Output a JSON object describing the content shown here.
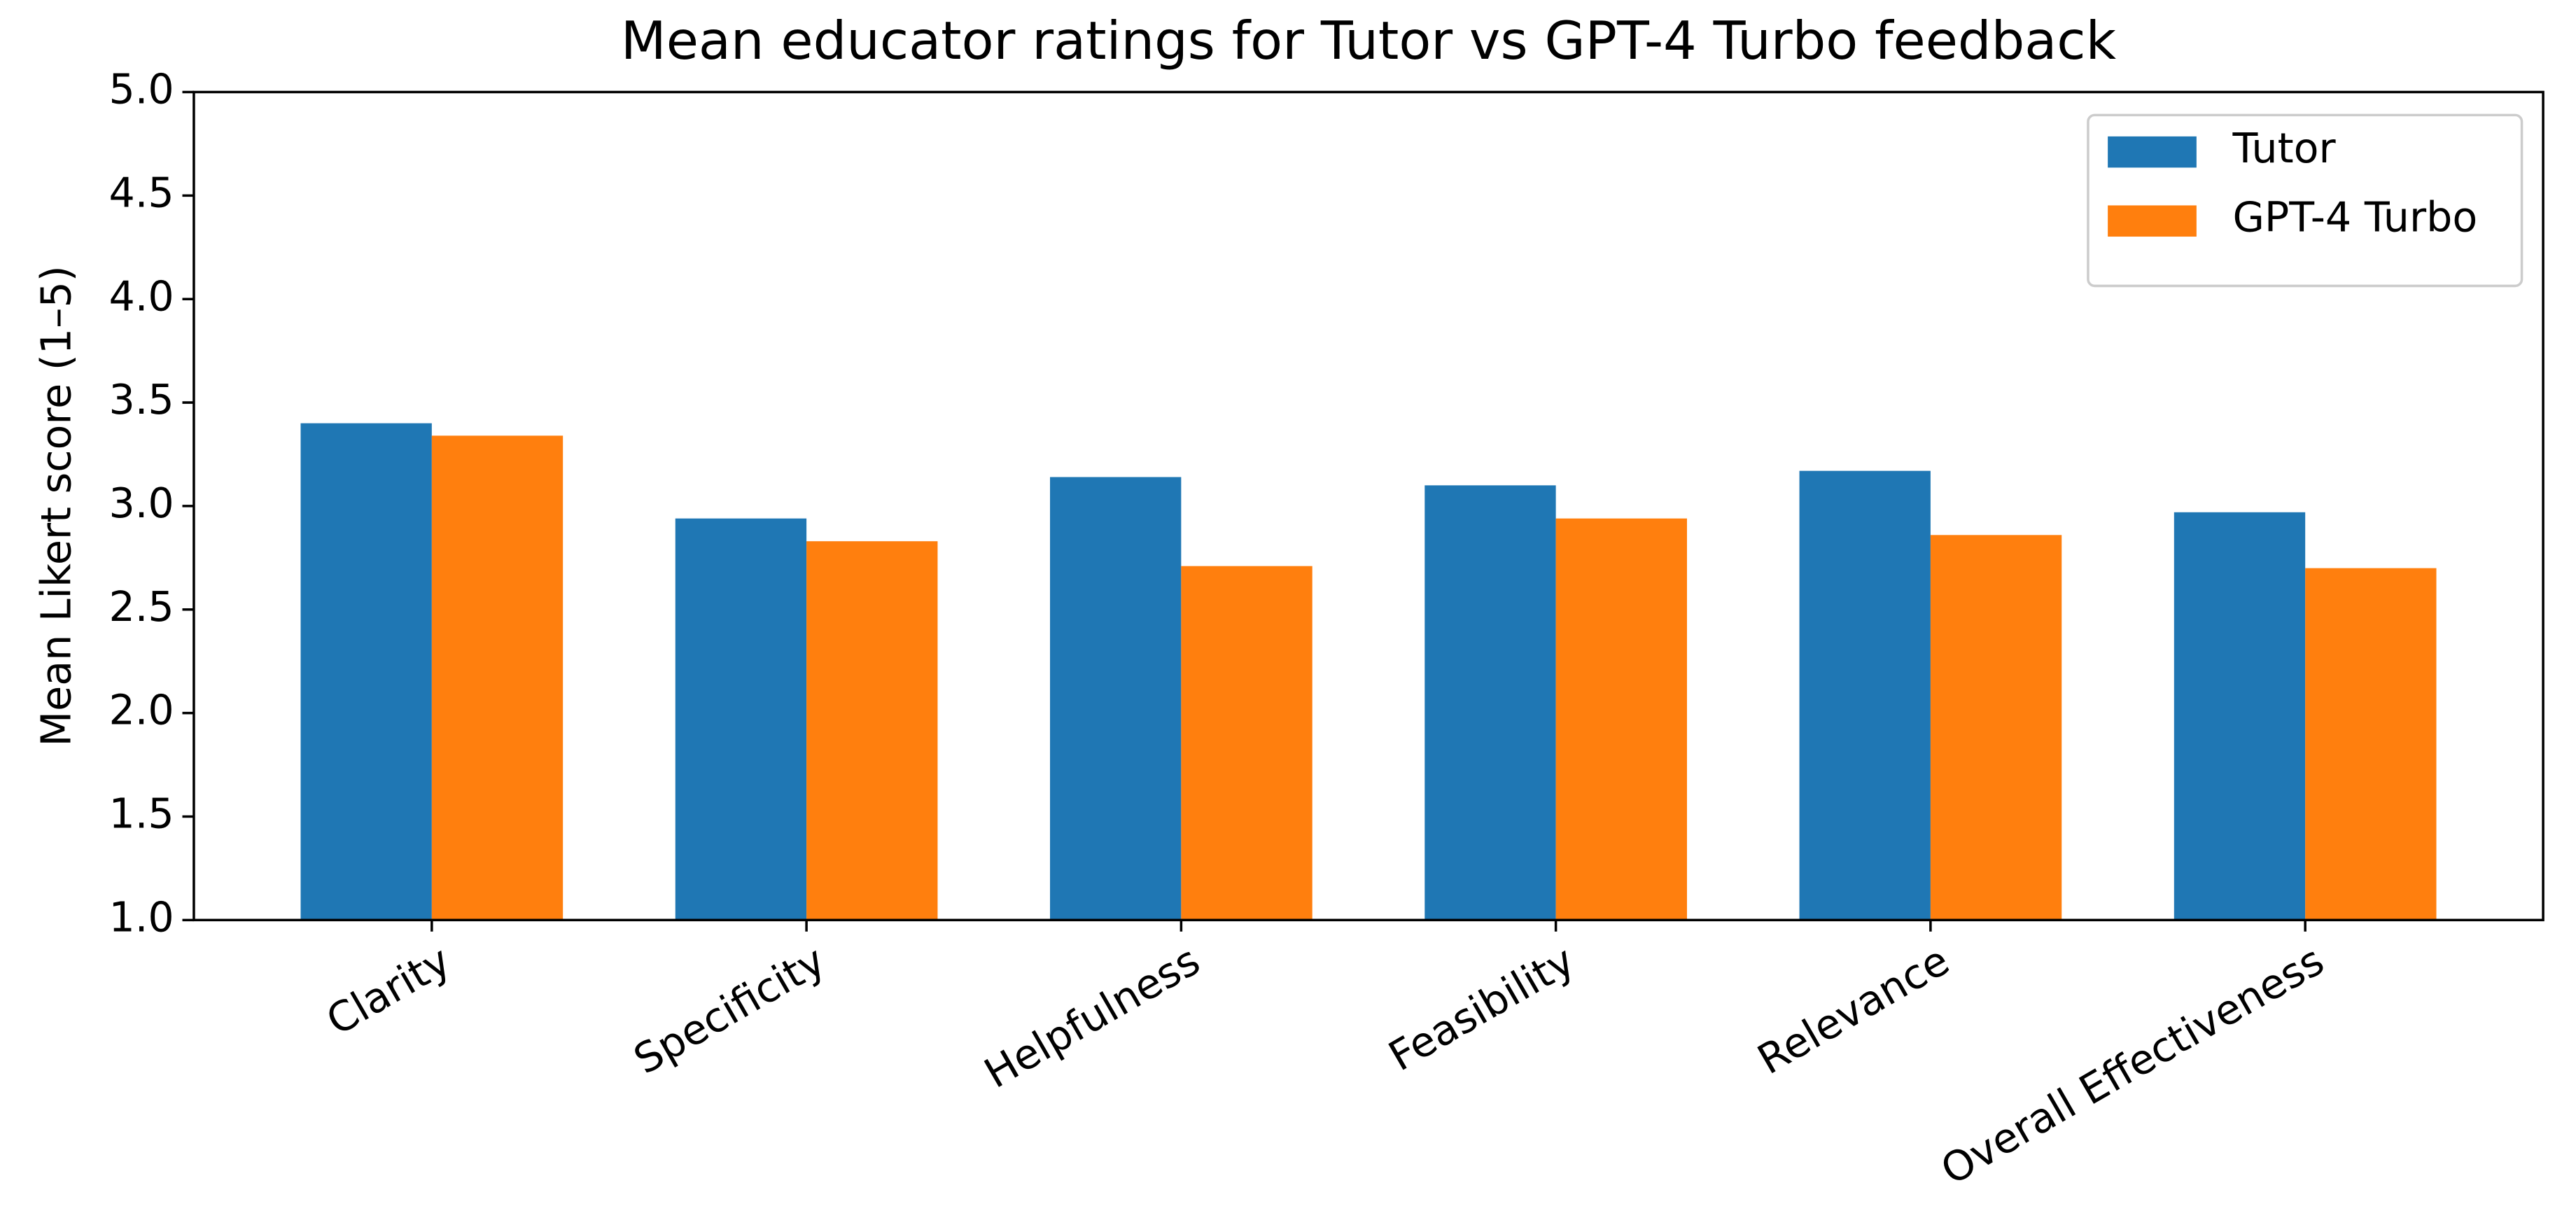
{
  "chart_data": {
    "type": "bar",
    "title": "Mean educator ratings for Tutor vs GPT-4 Turbo feedback",
    "y_label": "Mean Likert score (1–5)",
    "categories": [
      "Clarity",
      "Specificity",
      "Helpfulness",
      "Feasibility",
      "Relevance",
      "Overall Effectiveness"
    ],
    "series": [
      {
        "name": "Tutor",
        "color": "#1f77b4",
        "values": [
          3.4,
          2.94,
          3.14,
          3.1,
          3.17,
          2.97
        ]
      },
      {
        "name": "GPT-4 Turbo",
        "color": "#ff7f0e",
        "values": [
          3.34,
          2.83,
          2.71,
          2.94,
          2.86,
          2.7
        ]
      }
    ],
    "ylim": [
      1,
      5
    ],
    "yticks": [
      {
        "value": 1,
        "label": "1.0"
      },
      1.5,
      {
        "value": 2,
        "label": "2.0"
      },
      2.5,
      {
        "value": 3,
        "label": "3.0"
      },
      3.5,
      {
        "value": 4,
        "label": "4.0"
      },
      4.5,
      {
        "value": 5,
        "label": "5.0"
      }
    ],
    "legend": "upper right"
  }
}
